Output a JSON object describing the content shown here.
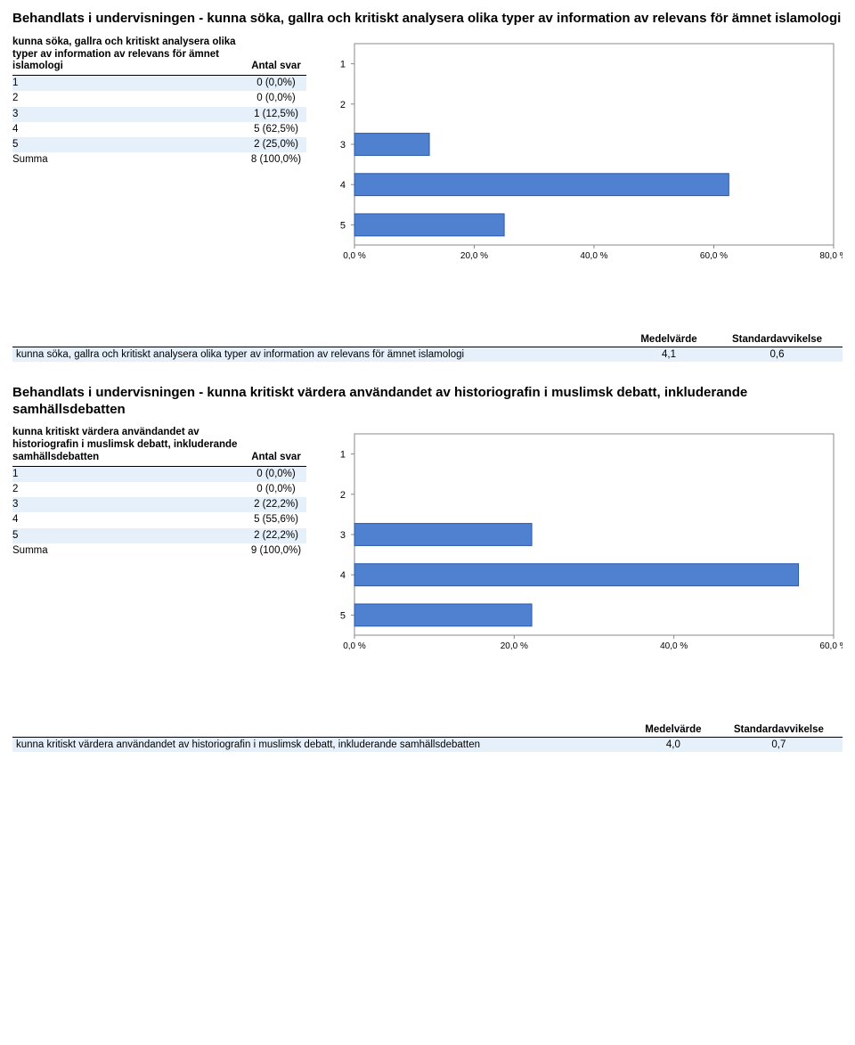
{
  "sections": [
    {
      "title": "Behandlats i undervisningen - kunna söka, gallra och kritiskt analysera olika typer av information av relevans för ämnet islamologi",
      "freq": {
        "question_header": "kunna söka, gallra och kritiskt analysera olika typer av information av relevans för ämnet islamologi",
        "count_header": "Antal svar",
        "rows": [
          {
            "label": "1",
            "count_label": "0 (0,0%)"
          },
          {
            "label": "2",
            "count_label": "0 (0,0%)"
          },
          {
            "label": "3",
            "count_label": "1\n(12,5%)"
          },
          {
            "label": "4",
            "count_label": "5\n(62,5%)"
          },
          {
            "label": "5",
            "count_label": "2\n(25,0%)"
          }
        ],
        "sum_label": "Summa",
        "sum_count": "8\n(100,0%)"
      },
      "chart": {
        "type": "bar-horizontal",
        "categories": [
          "1",
          "2",
          "3",
          "4",
          "5"
        ],
        "values": [
          0,
          0,
          12.5,
          62.5,
          25.0
        ],
        "xmax": 80.0,
        "xstep": 20.0,
        "x_suffix": " %",
        "bar_color": "#4f81d0",
        "bar_border": "#2a5aa8",
        "background": "#ffffff",
        "grid_color": "#dddddd",
        "axis_color": "#888888",
        "cat_fontsize": 11,
        "tick_fontsize": 10
      },
      "stats": {
        "col_mean": "Medelvärde",
        "col_sd": "Standardavvikelse",
        "row_label": "kunna söka, gallra och kritiskt analysera olika typer av information av relevans för ämnet islamologi",
        "mean": "4,1",
        "sd": "0,6"
      }
    },
    {
      "title": "Behandlats i undervisningen - kunna kritiskt värdera användandet av historiografin i muslimsk debatt, inkluderande samhällsdebatten",
      "freq": {
        "question_header": "kunna kritiskt värdera användandet av historiografin i muslimsk debatt, inkluderande samhällsdebatten",
        "count_header": "Antal svar",
        "rows": [
          {
            "label": "1",
            "count_label": "0 (0,0%)"
          },
          {
            "label": "2",
            "count_label": "0 (0,0%)"
          },
          {
            "label": "3",
            "count_label": "2\n(22,2%)"
          },
          {
            "label": "4",
            "count_label": "5\n(55,6%)"
          },
          {
            "label": "5",
            "count_label": "2\n(22,2%)"
          }
        ],
        "sum_label": "Summa",
        "sum_count": "9\n(100,0%)"
      },
      "chart": {
        "type": "bar-horizontal",
        "categories": [
          "1",
          "2",
          "3",
          "4",
          "5"
        ],
        "values": [
          0,
          0,
          22.2,
          55.6,
          22.2
        ],
        "xmax": 60.0,
        "xstep": 20.0,
        "x_suffix": " %",
        "bar_color": "#4f81d0",
        "bar_border": "#2a5aa8",
        "background": "#ffffff",
        "grid_color": "#dddddd",
        "axis_color": "#888888",
        "cat_fontsize": 11,
        "tick_fontsize": 10
      },
      "stats": {
        "col_mean": "Medelvärde",
        "col_sd": "Standardavvikelse",
        "row_label": "kunna kritiskt värdera användandet av historiografin i muslimsk debatt, inkluderande samhällsdebatten",
        "mean": "4,0",
        "sd": "0,7"
      }
    }
  ]
}
